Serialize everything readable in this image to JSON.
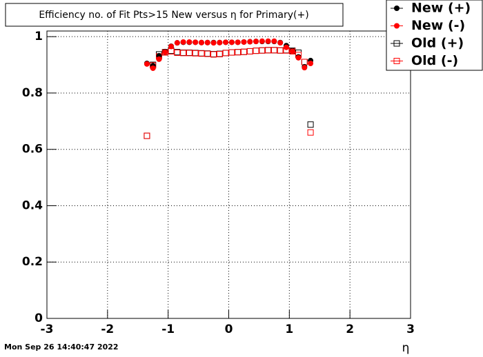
{
  "chart_data": {
    "type": "scatter",
    "title": "Efficiency no. of Fit Pts>15 New versus η for Primary(+)",
    "x_label": "η",
    "timestamp": "Mon Sep 26 14:40:47 2022",
    "xlim": [
      -3,
      3
    ],
    "ylim": [
      0,
      1.02
    ],
    "xticks": [
      -3,
      -2,
      -1,
      0,
      1,
      2,
      3
    ],
    "yticks": [
      0,
      0.2,
      0.4,
      0.6,
      0.8,
      1
    ],
    "grid": true,
    "legend": "top-right",
    "x": [
      -1.35,
      -1.25,
      -1.15,
      -1.05,
      -0.95,
      -0.85,
      -0.75,
      -0.65,
      -0.55,
      -0.45,
      -0.35,
      -0.25,
      -0.15,
      -0.05,
      0.05,
      0.15,
      0.25,
      0.35,
      0.45,
      0.55,
      0.65,
      0.75,
      0.85,
      0.95,
      1.05,
      1.15,
      1.25,
      1.35
    ],
    "series": [
      {
        "name": "New (+)",
        "color": "#000000",
        "marker": "circle",
        "values": [
          0.905,
          0.897,
          0.932,
          0.947,
          0.966,
          0.978,
          0.98,
          0.98,
          0.98,
          0.979,
          0.979,
          0.979,
          0.979,
          0.98,
          0.98,
          0.98,
          0.981,
          0.982,
          0.983,
          0.983,
          0.983,
          0.983,
          0.979,
          0.968,
          0.95,
          0.928,
          0.893,
          0.915
        ]
      },
      {
        "name": "New (-)",
        "color": "#ff0000",
        "marker": "circle",
        "values": [
          0.903,
          0.888,
          0.92,
          0.945,
          0.965,
          0.978,
          0.981,
          0.981,
          0.98,
          0.979,
          0.979,
          0.978,
          0.979,
          0.98,
          0.98,
          0.98,
          0.981,
          0.982,
          0.983,
          0.984,
          0.984,
          0.984,
          0.978,
          0.962,
          0.948,
          0.925,
          0.89,
          0.905
        ]
      },
      {
        "name": "Old (+)",
        "color": "#000000",
        "marker": "square",
        "values": [
          0.648,
          0.9,
          0.937,
          0.945,
          0.95,
          0.945,
          0.943,
          0.943,
          0.942,
          0.941,
          0.94,
          0.938,
          0.939,
          0.942,
          0.944,
          0.945,
          0.946,
          0.948,
          0.95,
          0.951,
          0.952,
          0.952,
          0.951,
          0.952,
          0.95,
          0.943,
          0.91,
          0.688
        ]
      },
      {
        "name": "Old (-)",
        "color": "#ff0000",
        "marker": "square",
        "values": [
          0.648,
          0.898,
          0.93,
          0.944,
          0.948,
          0.943,
          0.942,
          0.942,
          0.941,
          0.94,
          0.939,
          0.937,
          0.938,
          0.942,
          0.944,
          0.945,
          0.946,
          0.948,
          0.95,
          0.951,
          0.952,
          0.952,
          0.951,
          0.951,
          0.948,
          0.935,
          0.91,
          0.66
        ]
      }
    ]
  }
}
